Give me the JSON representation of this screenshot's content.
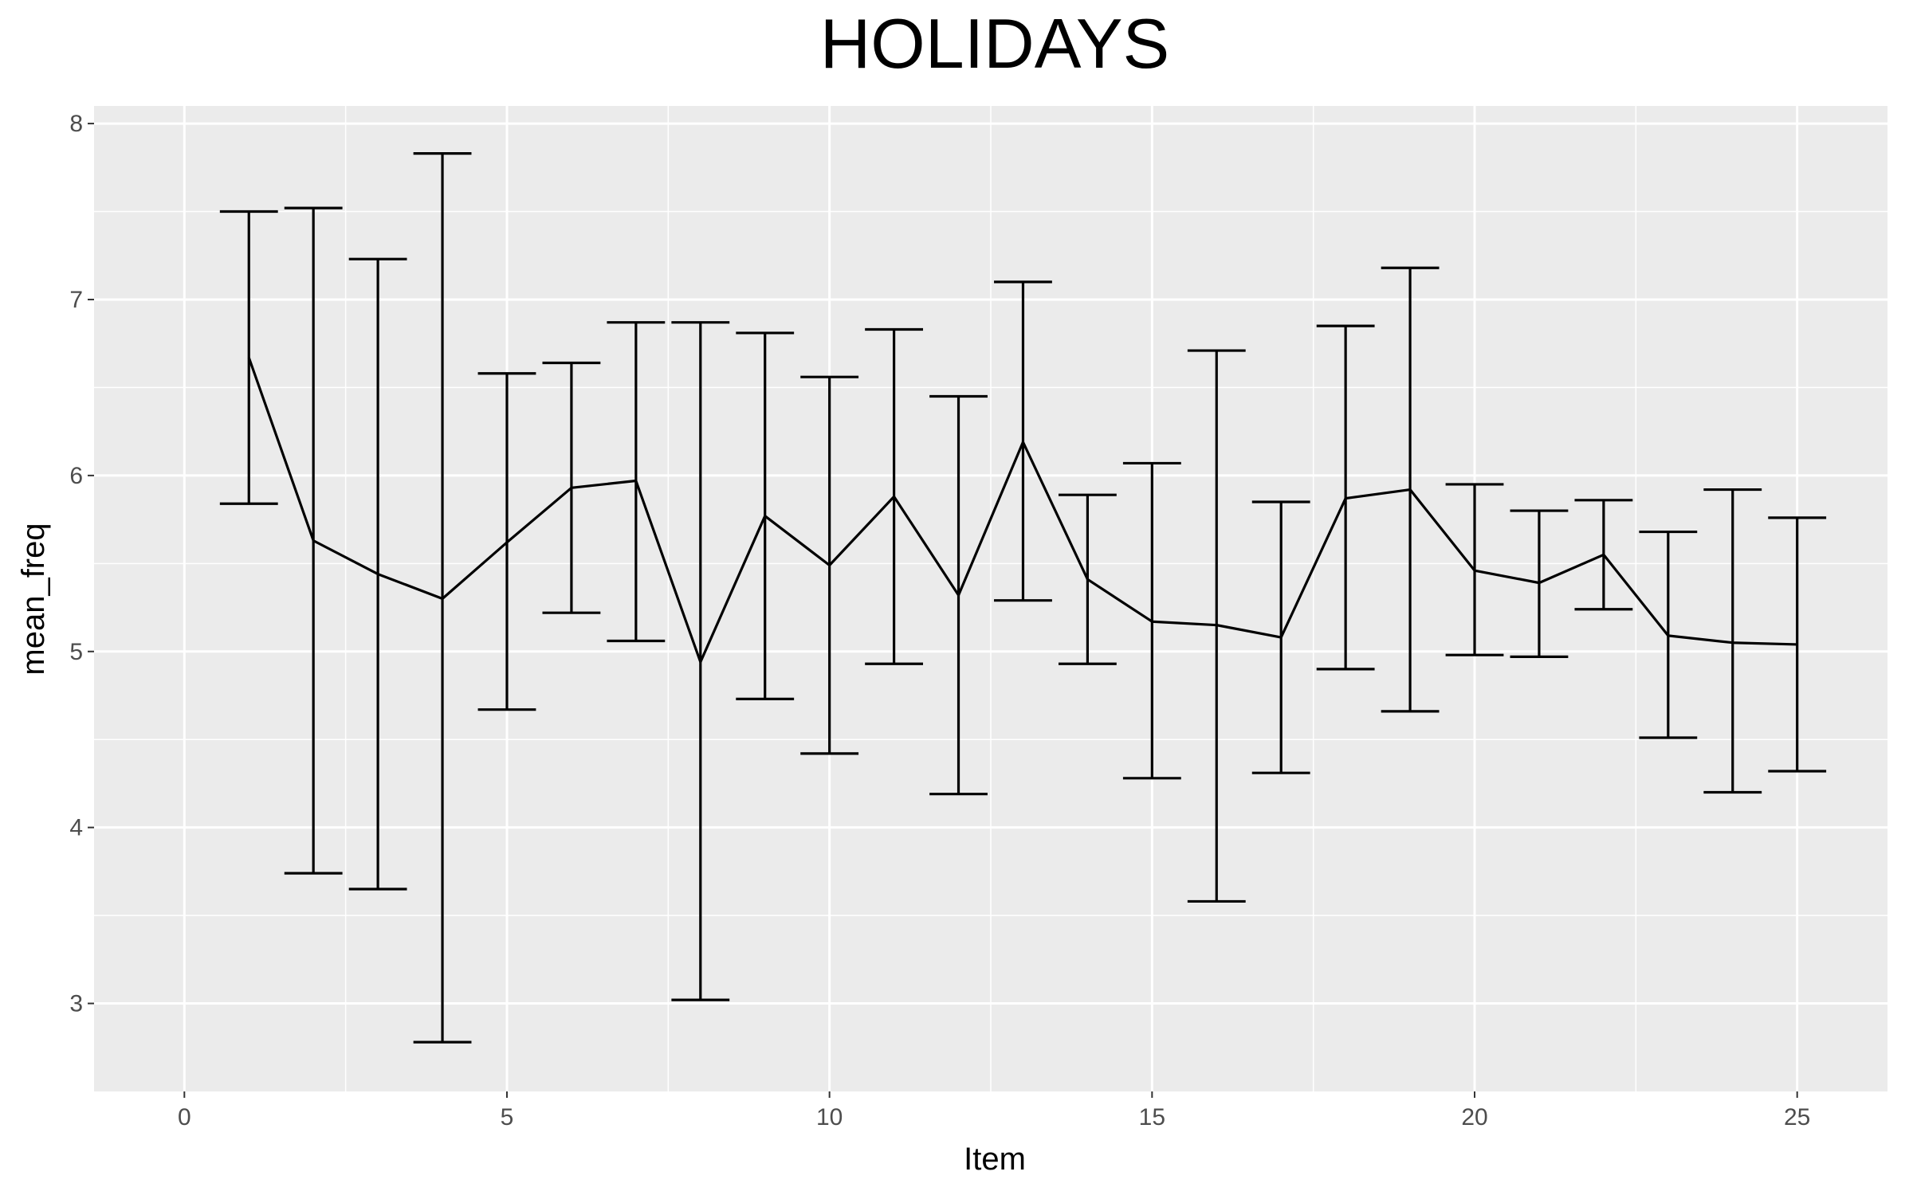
{
  "chart_data": {
    "type": "line",
    "title": "HOLIDAYS",
    "xlabel": "Item",
    "ylabel": "mean_freq",
    "xlim": [
      -1.4,
      26.4
    ],
    "ylim": [
      2.5,
      8.1
    ],
    "x_ticks": [
      0,
      5,
      10,
      15,
      20,
      25
    ],
    "y_ticks": [
      3,
      4,
      5,
      6,
      7,
      8
    ],
    "x_tick_labels": [
      "0",
      "5",
      "10",
      "15",
      "20",
      "25"
    ],
    "y_tick_labels": [
      "3",
      "4",
      "5",
      "6",
      "7",
      "8"
    ],
    "grid": true,
    "legend": "none",
    "colors": {
      "panel": "#ebebeb",
      "grid": "#ffffff",
      "line": "#000000"
    },
    "series": [
      {
        "x": [
          1,
          2,
          3,
          4,
          5,
          6,
          7,
          8,
          9,
          10,
          11,
          12,
          13,
          14,
          15,
          16,
          17,
          18,
          19,
          20,
          21,
          22,
          23,
          24,
          25
        ],
        "values": [
          6.67,
          5.63,
          5.44,
          5.3,
          5.62,
          5.93,
          5.97,
          4.94,
          5.77,
          5.49,
          5.88,
          5.32,
          6.19,
          5.41,
          5.17,
          5.15,
          5.08,
          5.87,
          5.92,
          5.46,
          5.39,
          5.55,
          5.09,
          5.05,
          5.04
        ],
        "lower": [
          5.84,
          3.74,
          3.65,
          2.78,
          4.67,
          5.22,
          5.06,
          3.02,
          4.73,
          4.42,
          4.93,
          4.19,
          5.29,
          4.93,
          4.28,
          3.58,
          4.31,
          4.9,
          4.66,
          4.98,
          4.97,
          5.24,
          4.51,
          4.2,
          4.32
        ],
        "upper": [
          7.5,
          7.52,
          7.23,
          7.83,
          6.58,
          6.64,
          6.87,
          6.87,
          6.81,
          6.56,
          6.83,
          6.45,
          7.1,
          5.89,
          6.07,
          6.71,
          5.85,
          6.85,
          7.18,
          5.95,
          5.8,
          5.86,
          5.68,
          5.92,
          5.76
        ]
      }
    ]
  }
}
